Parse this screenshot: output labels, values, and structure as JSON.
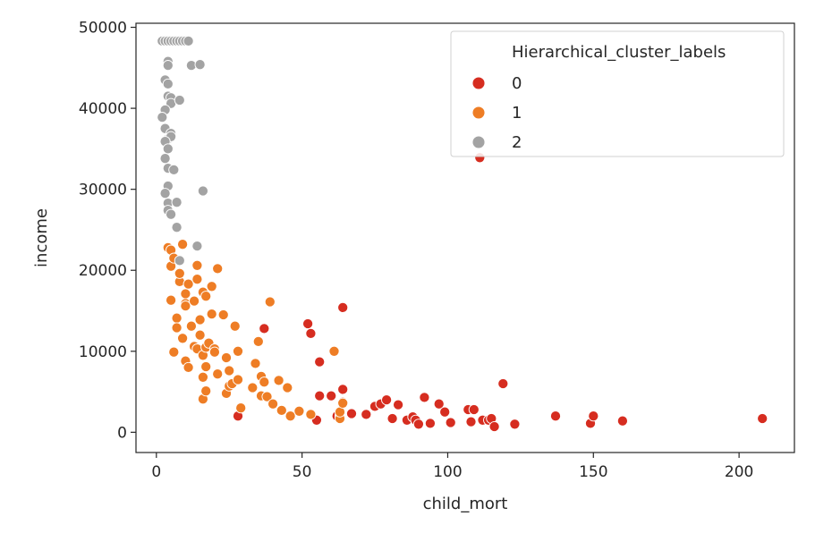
{
  "chart_data": {
    "type": "scatter",
    "title": "",
    "xlabel": "child_mort",
    "ylabel": "income",
    "xlim": [
      -7,
      219
    ],
    "ylim": [
      -2500,
      50500
    ],
    "xticks": [
      0,
      50,
      100,
      150,
      200
    ],
    "yticks": [
      0,
      10000,
      20000,
      30000,
      40000,
      50000
    ],
    "grid": false,
    "legend": {
      "title": "Hierarchical_cluster_labels",
      "placement": "top-right"
    },
    "series": [
      {
        "name": "0",
        "color": "#d62d20",
        "points": [
          [
            28,
            2000
          ],
          [
            37,
            12800
          ],
          [
            52,
            13400
          ],
          [
            53,
            12200
          ],
          [
            55,
            1500
          ],
          [
            56,
            8700
          ],
          [
            56,
            4500
          ],
          [
            60,
            4500
          ],
          [
            62,
            2000
          ],
          [
            63,
            2000
          ],
          [
            64,
            15400
          ],
          [
            64,
            5300
          ],
          [
            64,
            3700
          ],
          [
            67,
            2300
          ],
          [
            72,
            2200
          ],
          [
            75,
            3200
          ],
          [
            77,
            3500
          ],
          [
            79,
            4000
          ],
          [
            81,
            1700
          ],
          [
            83,
            3400
          ],
          [
            86,
            1500
          ],
          [
            88,
            1900
          ],
          [
            89,
            1500
          ],
          [
            90,
            1000
          ],
          [
            92,
            4300
          ],
          [
            94,
            1100
          ],
          [
            97,
            3500
          ],
          [
            99,
            2500
          ],
          [
            101,
            1200
          ],
          [
            107,
            2800
          ],
          [
            108,
            1300
          ],
          [
            109,
            2800
          ],
          [
            111,
            33900
          ],
          [
            112,
            1500
          ],
          [
            114,
            1500
          ],
          [
            115,
            1700
          ],
          [
            116,
            700
          ],
          [
            119,
            6000
          ],
          [
            123,
            1000
          ],
          [
            137,
            2000
          ],
          [
            149,
            1100
          ],
          [
            150,
            2000
          ],
          [
            160,
            1400
          ],
          [
            208,
            1700
          ]
        ]
      },
      {
        "name": "1",
        "color": "#ee7d25",
        "points": [
          [
            4,
            22800
          ],
          [
            5,
            22500
          ],
          [
            5,
            20500
          ],
          [
            5,
            16300
          ],
          [
            6,
            21500
          ],
          [
            6,
            9900
          ],
          [
            7,
            14100
          ],
          [
            7,
            12900
          ],
          [
            8,
            18600
          ],
          [
            8,
            19600
          ],
          [
            9,
            23200
          ],
          [
            9,
            11600
          ],
          [
            10,
            15900
          ],
          [
            10,
            17100
          ],
          [
            10,
            15600
          ],
          [
            10,
            8800
          ],
          [
            11,
            8000
          ],
          [
            11,
            18300
          ],
          [
            12,
            13100
          ],
          [
            13,
            10600
          ],
          [
            13,
            16200
          ],
          [
            14,
            20600
          ],
          [
            14,
            18900
          ],
          [
            14,
            10300
          ],
          [
            15,
            13900
          ],
          [
            15,
            12000
          ],
          [
            16,
            17300
          ],
          [
            16,
            9500
          ],
          [
            16,
            4100
          ],
          [
            16,
            6800
          ],
          [
            17,
            10500
          ],
          [
            17,
            16800
          ],
          [
            17,
            5100
          ],
          [
            17,
            8100
          ],
          [
            18,
            11000
          ],
          [
            19,
            18000
          ],
          [
            19,
            14600
          ],
          [
            20,
            10300
          ],
          [
            20,
            9900
          ],
          [
            21,
            20200
          ],
          [
            21,
            7200
          ],
          [
            23,
            14500
          ],
          [
            24,
            9200
          ],
          [
            24,
            4800
          ],
          [
            25,
            5700
          ],
          [
            25,
            7600
          ],
          [
            26,
            6000
          ],
          [
            27,
            13100
          ],
          [
            28,
            10000
          ],
          [
            28,
            6500
          ],
          [
            29,
            3000
          ],
          [
            33,
            5500
          ],
          [
            34,
            8500
          ],
          [
            35,
            11200
          ],
          [
            36,
            6900
          ],
          [
            36,
            4500
          ],
          [
            37,
            6200
          ],
          [
            38,
            4400
          ],
          [
            39,
            16100
          ],
          [
            40,
            3500
          ],
          [
            42,
            6400
          ],
          [
            45,
            5500
          ],
          [
            43,
            2700
          ],
          [
            46,
            2000
          ],
          [
            49,
            2600
          ],
          [
            53,
            2200
          ],
          [
            61,
            10000
          ],
          [
            63,
            1700
          ],
          [
            63,
            2500
          ],
          [
            64,
            3600
          ]
        ]
      },
      {
        "name": "2",
        "color": "#a3a3a3",
        "points": [
          [
            2,
            48300
          ],
          [
            3,
            48300
          ],
          [
            4,
            48300
          ],
          [
            5,
            48300
          ],
          [
            6,
            48300
          ],
          [
            7,
            48300
          ],
          [
            8,
            48300
          ],
          [
            9,
            48300
          ],
          [
            10,
            48300
          ],
          [
            11,
            48300
          ],
          [
            4,
            45800
          ],
          [
            4,
            45300
          ],
          [
            12,
            45300
          ],
          [
            15,
            45400
          ],
          [
            3,
            43500
          ],
          [
            4,
            43000
          ],
          [
            4,
            41500
          ],
          [
            5,
            41300
          ],
          [
            5,
            40600
          ],
          [
            8,
            41000
          ],
          [
            3,
            39800
          ],
          [
            2,
            38900
          ],
          [
            3,
            37500
          ],
          [
            4,
            36200
          ],
          [
            5,
            36900
          ],
          [
            5,
            36500
          ],
          [
            3,
            35900
          ],
          [
            4,
            35000
          ],
          [
            3,
            33800
          ],
          [
            4,
            32600
          ],
          [
            6,
            32400
          ],
          [
            4,
            30400
          ],
          [
            3,
            29500
          ],
          [
            16,
            29800
          ],
          [
            4,
            28300
          ],
          [
            4,
            27400
          ],
          [
            5,
            26900
          ],
          [
            7,
            28400
          ],
          [
            7,
            25300
          ],
          [
            14,
            23000
          ],
          [
            8,
            21200
          ]
        ]
      }
    ]
  }
}
